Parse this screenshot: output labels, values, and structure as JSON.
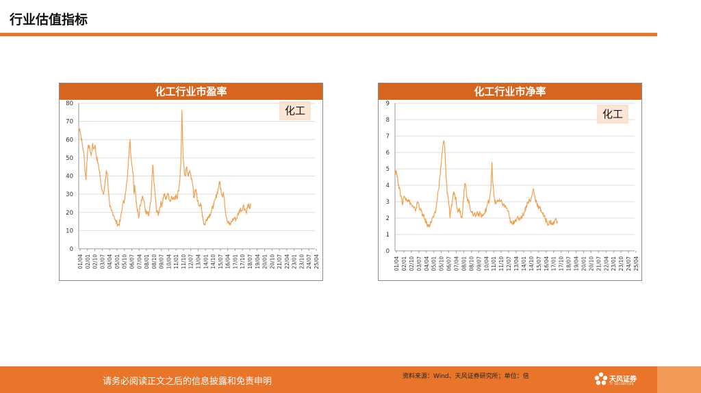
{
  "page": {
    "title": "行业估值指标"
  },
  "colors": {
    "accent": "#e8752a",
    "panel_header": "#d8651d",
    "series": "#f0a150",
    "grid": "#dcdcdc"
  },
  "footer": {
    "disclaimer": "请务必阅读正文之后的信息披露和免责申明",
    "source": "资料来源：Wind、天风证券研究所；单位：倍",
    "brand_name": "天风证券",
    "brand_sub": "TF SECURITIES",
    "brand_icon": "flower-logo-icon"
  },
  "chart_data": [
    {
      "type": "line",
      "title": "化工行业市盈率",
      "legend_label": "化工",
      "legend_position": "top-right",
      "grid": true,
      "ylim": [
        0,
        80
      ],
      "yticks": [
        0,
        10,
        20,
        30,
        40,
        50,
        60,
        70,
        80
      ],
      "xticks": [
        "01/04",
        "02/01",
        "02/10",
        "03/07",
        "04/04",
        "05/01",
        "05/10",
        "06/07",
        "07/04",
        "08/01",
        "08/10",
        "09/07",
        "10/04",
        "11/01",
        "11/10",
        "12/07",
        "13/04",
        "14/01",
        "14/10",
        "15/07",
        "16/04",
        "17/01",
        "17/10",
        "18/07",
        "19/04",
        "20/01",
        "20/10",
        "21/07",
        "22/04",
        "23/01",
        "23/10",
        "24/07",
        "25/04"
      ],
      "series": [
        {
          "name": "化工",
          "points": [
            [
              0,
              65
            ],
            [
              0.15,
              66
            ],
            [
              0.3,
              62
            ],
            [
              0.5,
              57
            ],
            [
              0.7,
              52
            ],
            [
              0.85,
              43
            ],
            [
              1,
              38
            ],
            [
              1.1,
              48
            ],
            [
              1.3,
              57
            ],
            [
              1.5,
              55
            ],
            [
              1.7,
              51
            ],
            [
              1.85,
              57
            ],
            [
              2.05,
              55
            ],
            [
              2.2,
              57
            ],
            [
              2.4,
              51
            ],
            [
              2.6,
              47
            ],
            [
              2.8,
              43
            ],
            [
              3.0,
              36
            ],
            [
              3.2,
              32
            ],
            [
              3.4,
              31
            ],
            [
              3.55,
              35
            ],
            [
              3.75,
              43
            ],
            [
              3.9,
              40
            ],
            [
              4.0,
              33
            ],
            [
              4.1,
              29
            ],
            [
              4.2,
              23
            ],
            [
              4.4,
              21
            ],
            [
              4.6,
              20
            ],
            [
              4.8,
              18
            ],
            [
              5.0,
              15
            ],
            [
              5.2,
              14
            ],
            [
              5.4,
              13
            ],
            [
              5.6,
              15
            ],
            [
              5.8,
              20
            ],
            [
              6.0,
              25
            ],
            [
              6.2,
              27
            ],
            [
              6.4,
              32
            ],
            [
              6.6,
              40
            ],
            [
              6.75,
              50
            ],
            [
              6.85,
              55
            ],
            [
              6.95,
              60
            ],
            [
              7.1,
              50
            ],
            [
              7.25,
              45
            ],
            [
              7.4,
              40
            ],
            [
              7.5,
              30
            ],
            [
              7.6,
              35
            ],
            [
              7.75,
              28
            ],
            [
              7.9,
              22
            ],
            [
              8.0,
              20
            ],
            [
              8.15,
              17
            ],
            [
              8.3,
              24
            ],
            [
              8.5,
              27
            ],
            [
              8.65,
              29
            ],
            [
              8.85,
              26
            ],
            [
              9.0,
              22
            ],
            [
              9.15,
              19
            ],
            [
              9.3,
              20
            ],
            [
              9.45,
              18
            ],
            [
              9.6,
              21
            ],
            [
              9.8,
              27
            ],
            [
              9.95,
              40
            ],
            [
              10.05,
              46
            ],
            [
              10.2,
              36
            ],
            [
              10.35,
              30
            ],
            [
              10.5,
              22
            ],
            [
              10.65,
              20
            ],
            [
              10.8,
              19
            ],
            [
              10.95,
              22
            ],
            [
              11.1,
              25
            ],
            [
              11.3,
              24
            ],
            [
              11.45,
              28
            ],
            [
              11.6,
              30
            ],
            [
              11.8,
              27
            ],
            [
              12.0,
              30
            ],
            [
              12.2,
              29
            ],
            [
              12.4,
              26
            ],
            [
              12.6,
              29
            ],
            [
              12.8,
              28
            ],
            [
              13.0,
              27
            ],
            [
              13.2,
              30
            ],
            [
              13.35,
              28
            ],
            [
              13.5,
              32
            ],
            [
              13.65,
              36
            ],
            [
              13.8,
              44
            ],
            [
              13.9,
              58
            ],
            [
              13.98,
              76
            ],
            [
              14.05,
              65
            ],
            [
              14.15,
              50
            ],
            [
              14.3,
              42
            ],
            [
              14.45,
              40
            ],
            [
              14.6,
              45
            ],
            [
              14.75,
              42
            ],
            [
              14.9,
              40
            ],
            [
              15.05,
              43
            ],
            [
              15.2,
              40
            ],
            [
              15.35,
              37
            ],
            [
              15.5,
              34
            ],
            [
              15.6,
              28
            ],
            [
              15.8,
              32
            ],
            [
              15.95,
              31
            ],
            [
              16.1,
              26
            ],
            [
              16.3,
              24
            ],
            [
              16.5,
              25
            ],
            [
              16.65,
              21
            ],
            [
              16.8,
              18
            ],
            [
              16.9,
              15
            ],
            [
              17.05,
              13
            ],
            [
              17.2,
              15
            ],
            [
              17.4,
              17
            ],
            [
              17.6,
              18
            ],
            [
              17.8,
              19
            ],
            [
              18.0,
              21
            ],
            [
              18.15,
              23
            ],
            [
              18.3,
              24
            ],
            [
              18.5,
              27
            ],
            [
              18.7,
              30
            ],
            [
              18.85,
              32
            ],
            [
              19.0,
              35
            ],
            [
              19.1,
              37
            ],
            [
              19.25,
              33
            ],
            [
              19.45,
              29
            ],
            [
              19.6,
              31
            ],
            [
              19.75,
              26
            ],
            [
              19.9,
              20
            ],
            [
              20.05,
              17
            ],
            [
              20.2,
              15
            ],
            [
              20.35,
              14
            ],
            [
              20.5,
              13
            ],
            [
              20.7,
              15
            ],
            [
              20.9,
              16
            ],
            [
              21.1,
              17
            ],
            [
              21.3,
              16
            ],
            [
              21.5,
              18
            ],
            [
              21.7,
              20
            ],
            [
              21.9,
              22
            ],
            [
              22.1,
              21
            ],
            [
              22.3,
              24
            ],
            [
              22.5,
              22
            ],
            [
              22.7,
              20
            ],
            [
              22.85,
              23
            ],
            [
              23.0,
              24
            ],
            [
              23.15,
              22
            ],
            [
              23.3,
              25
            ]
          ]
        }
      ]
    },
    {
      "type": "line",
      "title": "化工行业市净率",
      "legend_label": "化工",
      "legend_position": "top-right",
      "grid": true,
      "ylim": [
        0,
        9
      ],
      "yticks": [
        0,
        1,
        2,
        3,
        4,
        5,
        6,
        7,
        8,
        9
      ],
      "xticks": [
        "01/04",
        "02/01",
        "02/10",
        "03/07",
        "04/04",
        "05/01",
        "05/10",
        "06/07",
        "07/04",
        "08/01",
        "08/10",
        "09/07",
        "10/04",
        "11/01",
        "11/10",
        "12/07",
        "13/04",
        "14/01",
        "14/10",
        "15/07",
        "16/04",
        "17/01",
        "17/10",
        "18/07",
        "19/04",
        "20/01",
        "20/10",
        "21/07",
        "22/04",
        "23/01",
        "23/10",
        "24/07",
        "25/04"
      ],
      "series": [
        {
          "name": "化工",
          "points": [
            [
              0,
              4.8
            ],
            [
              0.15,
              4.9
            ],
            [
              0.3,
              4.5
            ],
            [
              0.5,
              4.0
            ],
            [
              0.7,
              3.5
            ],
            [
              0.9,
              3.2
            ],
            [
              1.0,
              2.8
            ],
            [
              1.1,
              3.2
            ],
            [
              1.3,
              3.3
            ],
            [
              1.5,
              3.2
            ],
            [
              1.7,
              3.1
            ],
            [
              1.9,
              3.0
            ],
            [
              2.1,
              2.9
            ],
            [
              2.3,
              2.7
            ],
            [
              2.5,
              2.6
            ],
            [
              2.7,
              2.5
            ],
            [
              2.85,
              2.6
            ],
            [
              3.0,
              3.0
            ],
            [
              3.2,
              2.8
            ],
            [
              3.4,
              2.5
            ],
            [
              3.6,
              2.3
            ],
            [
              3.8,
              2.1
            ],
            [
              4.0,
              1.9
            ],
            [
              4.2,
              1.7
            ],
            [
              4.4,
              1.5
            ],
            [
              4.6,
              1.6
            ],
            [
              4.8,
              1.7
            ],
            [
              5.0,
              2.0
            ],
            [
              5.2,
              2.1
            ],
            [
              5.4,
              2.3
            ],
            [
              5.6,
              3.0
            ],
            [
              5.8,
              3.7
            ],
            [
              6.0,
              4.5
            ],
            [
              6.2,
              5.5
            ],
            [
              6.35,
              6.2
            ],
            [
              6.5,
              6.7
            ],
            [
              6.6,
              6.5
            ],
            [
              6.7,
              5.8
            ],
            [
              6.8,
              4.7
            ],
            [
              6.95,
              3.7
            ],
            [
              7.1,
              3.3
            ],
            [
              7.2,
              2.8
            ],
            [
              7.35,
              2.0
            ],
            [
              7.5,
              2.5
            ],
            [
              7.7,
              3.2
            ],
            [
              7.85,
              3.6
            ],
            [
              8.0,
              3.3
            ],
            [
              8.15,
              3.2
            ],
            [
              8.3,
              2.6
            ],
            [
              8.45,
              2.4
            ],
            [
              8.6,
              2.6
            ],
            [
              8.75,
              2.3
            ],
            [
              8.95,
              2.0
            ],
            [
              9.1,
              3.0
            ],
            [
              9.25,
              3.8
            ],
            [
              9.4,
              4.1
            ],
            [
              9.55,
              3.5
            ],
            [
              9.7,
              3.1
            ],
            [
              9.85,
              3.0
            ],
            [
              10.0,
              2.7
            ],
            [
              10.2,
              2.4
            ],
            [
              10.4,
              2.2
            ],
            [
              10.6,
              2.3
            ],
            [
              10.8,
              2.1
            ],
            [
              11.0,
              2.4
            ],
            [
              11.2,
              2.2
            ],
            [
              11.4,
              2.3
            ],
            [
              11.6,
              2.1
            ],
            [
              11.8,
              2.2
            ],
            [
              12.0,
              2.3
            ],
            [
              12.2,
              2.6
            ],
            [
              12.4,
              2.9
            ],
            [
              12.6,
              3.1
            ],
            [
              12.75,
              3.6
            ],
            [
              12.85,
              4.2
            ],
            [
              12.95,
              5.4
            ],
            [
              13.05,
              4.2
            ],
            [
              13.2,
              3.4
            ],
            [
              13.35,
              3.0
            ],
            [
              13.5,
              2.9
            ],
            [
              13.7,
              3.1
            ],
            [
              13.9,
              3.0
            ],
            [
              14.1,
              3.0
            ],
            [
              14.3,
              2.9
            ],
            [
              14.5,
              2.8
            ],
            [
              14.7,
              2.7
            ],
            [
              14.9,
              2.6
            ],
            [
              15.1,
              2.4
            ],
            [
              15.3,
              2.0
            ],
            [
              15.5,
              1.7
            ],
            [
              15.7,
              1.6
            ],
            [
              15.9,
              1.8
            ],
            [
              16.1,
              1.9
            ],
            [
              16.3,
              2.0
            ],
            [
              16.5,
              1.9
            ],
            [
              16.7,
              2.0
            ],
            [
              16.9,
              2.1
            ],
            [
              17.1,
              2.2
            ],
            [
              17.3,
              2.4
            ],
            [
              17.5,
              2.7
            ],
            [
              17.7,
              2.9
            ],
            [
              17.9,
              3.1
            ],
            [
              18.1,
              3.0
            ],
            [
              18.3,
              3.4
            ],
            [
              18.5,
              3.8
            ],
            [
              18.7,
              3.2
            ],
            [
              18.9,
              3.0
            ],
            [
              19.1,
              2.7
            ],
            [
              19.3,
              2.6
            ],
            [
              19.5,
              2.5
            ],
            [
              19.7,
              2.3
            ],
            [
              19.9,
              2.1
            ],
            [
              20.1,
              1.9
            ],
            [
              20.3,
              1.8
            ],
            [
              20.5,
              1.6
            ],
            [
              20.7,
              1.8
            ],
            [
              20.9,
              1.7
            ],
            [
              21.1,
              1.6
            ],
            [
              21.3,
              1.8
            ],
            [
              21.5,
              1.9
            ],
            [
              21.7,
              1.8
            ]
          ]
        }
      ]
    }
  ]
}
